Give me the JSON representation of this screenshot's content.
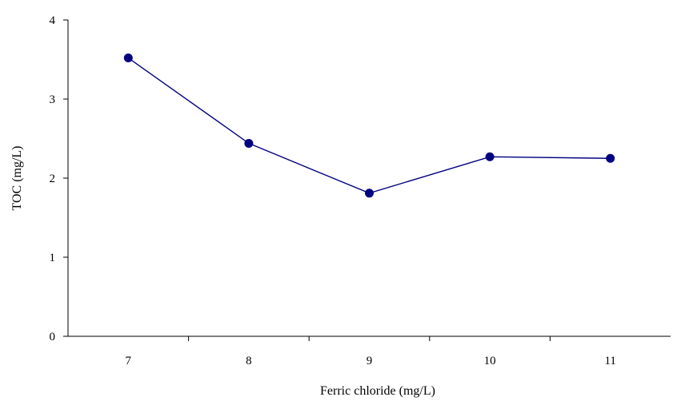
{
  "chart_data": {
    "type": "line",
    "title": "",
    "xlabel": "Ferric chloride (mg/L)",
    "ylabel": "TOC (mg/L)",
    "categories": [
      "7",
      "8",
      "9",
      "10",
      "11"
    ],
    "ylim": [
      0,
      4
    ],
    "yticks": [
      "0",
      "1",
      "2",
      "3",
      "4"
    ],
    "series": [
      {
        "values": [
          3.52,
          2.44,
          1.81,
          2.27,
          2.25
        ],
        "color": "#000080"
      }
    ],
    "grid": false,
    "legend": "none"
  }
}
